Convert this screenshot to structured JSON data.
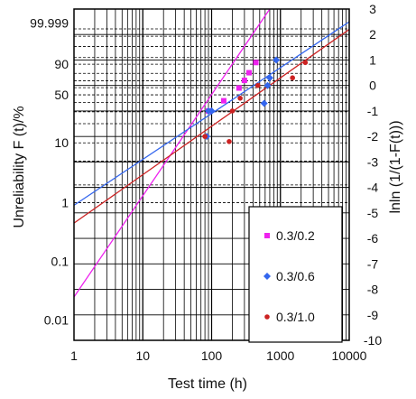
{
  "chart_data": {
    "type": "scatter",
    "x_scale": "log",
    "x_ticks": [
      1,
      10,
      100,
      1000,
      10000
    ],
    "x_tick_labels": [
      "1",
      "10",
      "100",
      "1000",
      "10000"
    ],
    "xlim": [
      1,
      10000
    ],
    "xlabel": "Test time (h)",
    "ylabel_left": "Unreliability F (t)/%",
    "ylabel_right": "lnln (1/(1-F(t)))",
    "right_axis_range": [
      -10,
      3
    ],
    "right_ticks": [
      3,
      2,
      1,
      0,
      -1,
      -2,
      -3,
      -4,
      -5,
      -6,
      -7,
      -8,
      -9,
      -10
    ],
    "right_tick_labels": [
      "3",
      "2",
      "1",
      "0",
      "-1",
      "-2",
      "-3",
      "-4",
      "-5",
      "-6",
      "-7",
      "-8",
      "-9",
      "-10"
    ],
    "left_ticks": [
      {
        "label": "99.999",
        "F": 99.999
      },
      {
        "label": "90",
        "F": 90
      },
      {
        "label": "50",
        "F": 50
      },
      {
        "label": "10",
        "F": 10
      },
      {
        "label": "1",
        "F": 1
      },
      {
        "label": "0.1",
        "F": 0.1
      },
      {
        "label": "0.01",
        "F": 0.01
      }
    ],
    "grid": true,
    "legend_position": "bottom-right",
    "series": [
      {
        "name": "0.3/0.2",
        "color": "#ee22ee",
        "marker": "square",
        "points": [
          [
            90,
            -1.0
          ],
          [
            150,
            -0.6
          ],
          [
            250,
            -0.1
          ],
          [
            300,
            0.2
          ],
          [
            350,
            0.5
          ],
          [
            440,
            0.9
          ]
        ],
        "fit_line": [
          [
            1,
            -8.3
          ],
          [
            700,
            3.0
          ]
        ]
      },
      {
        "name": "0.3/0.6",
        "color": "#3366ee",
        "marker": "diamond",
        "points": [
          [
            85,
            -2.0
          ],
          [
            90,
            -1.0
          ],
          [
            100,
            -1.0
          ],
          [
            580,
            -0.7
          ],
          [
            650,
            0.0
          ],
          [
            700,
            0.3
          ],
          [
            870,
            1.0
          ]
        ],
        "fit_line": [
          [
            1,
            -4.7
          ],
          [
            10000,
            2.5
          ]
        ]
      },
      {
        "name": "0.3/1.0",
        "color": "#cc2222",
        "marker": "circle",
        "points": [
          [
            80,
            -2.0
          ],
          [
            180,
            -2.2
          ],
          [
            200,
            -1.0
          ],
          [
            260,
            -0.5
          ],
          [
            470,
            0.0
          ],
          [
            1500,
            0.3
          ],
          [
            2300,
            0.9
          ]
        ],
        "fit_line": [
          [
            1,
            -5.4
          ],
          [
            10000,
            2.2
          ]
        ]
      }
    ]
  }
}
